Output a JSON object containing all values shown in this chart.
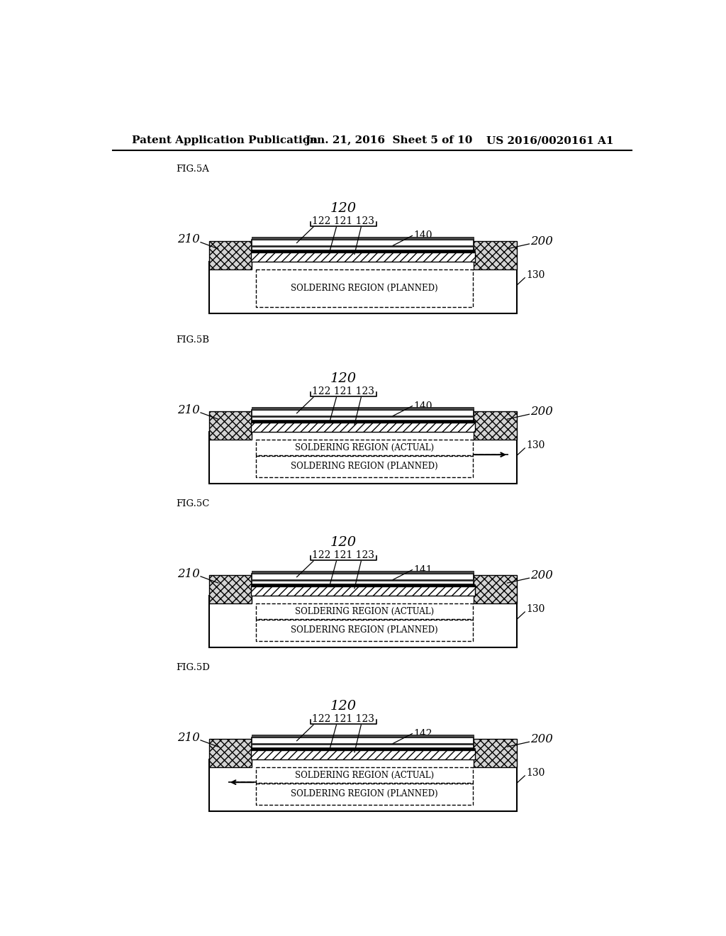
{
  "header_left": "Patent Application Publication",
  "header_mid": "Jan. 21, 2016  Sheet 5 of 10",
  "header_right": "US 2016/0020161 A1",
  "bg_color": "#ffffff",
  "panels": [
    {
      "label": "FIG.5A",
      "label120": "120",
      "labels_sub": "122 121 123",
      "label140": "140",
      "label200": "200",
      "label210": "210",
      "label130": "130",
      "solder_actual": false,
      "solder_planned": "SOLDERING REGION (PLANNED)",
      "arrow": null
    },
    {
      "label": "FIG.5B",
      "label120": "120",
      "labels_sub": "122 121 123",
      "label140": "140",
      "label200": "200",
      "label210": "210",
      "label130": "130",
      "solder_actual": "SOLDERING REGION (ACTUAL)",
      "solder_planned": "SOLDERING REGION (PLANNED)",
      "arrow": "right"
    },
    {
      "label": "FIG.5C",
      "label120": "120",
      "labels_sub": "122 121 123",
      "label140": "141",
      "label200": "200",
      "label210": "210",
      "label130": "130",
      "solder_actual": "SOLDERING REGION (ACTUAL)",
      "solder_planned": "SOLDERING REGION (PLANNED)",
      "arrow": null
    },
    {
      "label": "FIG.5D",
      "label120": "120",
      "labels_sub": "122 121 123",
      "label140": "142",
      "label200": "200",
      "label210": "210",
      "label130": "130",
      "solder_actual": "SOLDERING REGION (ACTUAL)",
      "solder_planned": "SOLDERING REGION (PLANNED)",
      "arrow": "left"
    }
  ]
}
